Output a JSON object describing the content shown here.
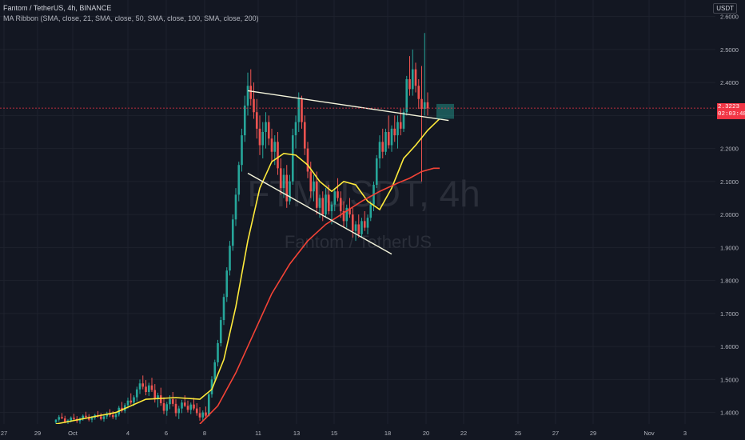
{
  "header": {
    "title": "Fantom / TetherUS, 4h, BINANCE",
    "indicator": "MA Ribbon (SMA, close, 21, SMA, close, 50, SMA, close, 100, SMA, close, 200)"
  },
  "currency": "USDT",
  "current_price": {
    "value": 2.3223,
    "label": "2.3223",
    "countdown": "02:03:48",
    "color": "#f23645"
  },
  "watermark": {
    "symbol": "FTMUSDT, 4h",
    "name": "Fantom / TetherUS"
  },
  "colors": {
    "background": "#131722",
    "grid": "#1e222d",
    "up": "#26a69a",
    "down": "#ef5350",
    "ma_fast": "#ffeb3b",
    "ma_slow": "#f44336",
    "trendline": "#f5f5dc"
  },
  "chart_data": {
    "type": "candlestick",
    "title": "Fantom / TetherUS, 4h, BINANCE",
    "ylim": [
      1.365,
      2.65
    ],
    "yaxis_ticks": [
      "2.6000",
      "2.5000",
      "2.4000",
      "2.3000",
      "2.2000",
      "2.1000",
      "2.0000",
      "1.9000",
      "1.8000",
      "1.7000",
      "1.6000",
      "1.5000",
      "1.4000"
    ],
    "xaxis_ticks": [
      "27",
      "29",
      "Oct",
      "4",
      "6",
      "8",
      "11",
      "13",
      "15",
      "18",
      "20",
      "22",
      "25",
      "27",
      "29",
      "Nov",
      "3"
    ],
    "candles": [
      [
        1.37,
        1.38,
        1.36,
        1.378
      ],
      [
        1.378,
        1.392,
        1.372,
        1.386
      ],
      [
        1.386,
        1.398,
        1.38,
        1.382
      ],
      [
        1.382,
        1.39,
        1.368,
        1.372
      ],
      [
        1.372,
        1.38,
        1.362,
        1.376
      ],
      [
        1.376,
        1.388,
        1.37,
        1.384
      ],
      [
        1.384,
        1.396,
        1.376,
        1.38
      ],
      [
        1.38,
        1.389,
        1.368,
        1.374
      ],
      [
        1.374,
        1.385,
        1.366,
        1.381
      ],
      [
        1.381,
        1.394,
        1.375,
        1.39
      ],
      [
        1.39,
        1.402,
        1.382,
        1.386
      ],
      [
        1.386,
        1.395,
        1.373,
        1.378
      ],
      [
        1.378,
        1.389,
        1.37,
        1.384
      ],
      [
        1.384,
        1.396,
        1.378,
        1.392
      ],
      [
        1.392,
        1.404,
        1.384,
        1.388
      ],
      [
        1.388,
        1.398,
        1.376,
        1.38
      ],
      [
        1.38,
        1.392,
        1.372,
        1.388
      ],
      [
        1.388,
        1.402,
        1.38,
        1.396
      ],
      [
        1.396,
        1.41,
        1.386,
        1.392
      ],
      [
        1.392,
        1.404,
        1.38,
        1.386
      ],
      [
        1.386,
        1.398,
        1.378,
        1.394
      ],
      [
        1.394,
        1.42,
        1.388,
        1.414
      ],
      [
        1.414,
        1.432,
        1.4,
        1.405
      ],
      [
        1.405,
        1.428,
        1.398,
        1.422
      ],
      [
        1.422,
        1.445,
        1.412,
        1.436
      ],
      [
        1.436,
        1.458,
        1.424,
        1.43
      ],
      [
        1.43,
        1.452,
        1.42,
        1.446
      ],
      [
        1.446,
        1.478,
        1.434,
        1.47
      ],
      [
        1.47,
        1.5,
        1.456,
        1.488
      ],
      [
        1.488,
        1.512,
        1.47,
        1.478
      ],
      [
        1.478,
        1.498,
        1.452,
        1.462
      ],
      [
        1.462,
        1.49,
        1.45,
        1.482
      ],
      [
        1.482,
        1.505,
        1.462,
        1.468
      ],
      [
        1.468,
        1.486,
        1.43,
        1.44
      ],
      [
        1.44,
        1.46,
        1.415,
        1.452
      ],
      [
        1.452,
        1.475,
        1.42,
        1.428
      ],
      [
        1.428,
        1.446,
        1.395,
        1.405
      ],
      [
        1.405,
        1.432,
        1.39,
        1.425
      ],
      [
        1.425,
        1.452,
        1.41,
        1.44
      ],
      [
        1.44,
        1.462,
        1.418,
        1.426
      ],
      [
        1.426,
        1.44,
        1.388,
        1.398
      ],
      [
        1.398,
        1.42,
        1.38,
        1.412
      ],
      [
        1.412,
        1.438,
        1.398,
        1.43
      ],
      [
        1.43,
        1.452,
        1.416,
        1.42
      ],
      [
        1.42,
        1.436,
        1.4,
        1.408
      ],
      [
        1.408,
        1.43,
        1.395,
        1.424
      ],
      [
        1.424,
        1.444,
        1.406,
        1.412
      ],
      [
        1.412,
        1.428,
        1.39,
        1.398
      ],
      [
        1.398,
        1.416,
        1.375,
        1.385
      ],
      [
        1.385,
        1.406,
        1.372,
        1.4
      ],
      [
        1.4,
        1.418,
        1.38,
        1.39
      ],
      [
        1.39,
        1.46,
        1.388,
        1.455
      ],
      [
        1.455,
        1.51,
        1.445,
        1.5
      ],
      [
        1.5,
        1.56,
        1.49,
        1.552
      ],
      [
        1.552,
        1.62,
        1.54,
        1.61
      ],
      [
        1.61,
        1.69,
        1.6,
        1.68
      ],
      [
        1.68,
        1.76,
        1.665,
        1.75
      ],
      [
        1.75,
        1.84,
        1.735,
        1.83
      ],
      [
        1.83,
        1.92,
        1.815,
        1.905
      ],
      [
        1.905,
        2.0,
        1.89,
        1.985
      ],
      [
        1.985,
        2.08,
        1.965,
        2.06
      ],
      [
        2.06,
        2.16,
        2.04,
        2.15
      ],
      [
        2.15,
        2.26,
        2.13,
        2.24
      ],
      [
        2.24,
        2.36,
        2.22,
        2.33
      ],
      [
        2.33,
        2.43,
        2.3,
        2.39
      ],
      [
        2.39,
        2.44,
        2.33,
        2.35
      ],
      [
        2.35,
        2.4,
        2.29,
        2.31
      ],
      [
        2.31,
        2.35,
        2.23,
        2.26
      ],
      [
        2.26,
        2.3,
        2.18,
        2.21
      ],
      [
        2.21,
        2.28,
        2.17,
        2.25
      ],
      [
        2.25,
        2.31,
        2.2,
        2.28
      ],
      [
        2.28,
        2.3,
        2.21,
        2.23
      ],
      [
        2.23,
        2.26,
        2.16,
        2.19
      ],
      [
        2.19,
        2.24,
        2.15,
        2.22
      ],
      [
        2.22,
        2.25,
        2.12,
        2.14
      ],
      [
        2.14,
        2.17,
        2.06,
        2.08
      ],
      [
        2.08,
        2.14,
        2.05,
        2.12
      ],
      [
        2.12,
        2.15,
        2.02,
        2.04
      ],
      [
        2.04,
        2.12,
        2.03,
        2.1
      ],
      [
        2.1,
        2.26,
        2.09,
        2.24
      ],
      [
        2.24,
        2.3,
        2.2,
        2.28
      ],
      [
        2.28,
        2.37,
        2.25,
        2.35
      ],
      [
        2.35,
        2.36,
        2.26,
        2.28
      ],
      [
        2.28,
        2.3,
        2.18,
        2.2
      ],
      [
        2.2,
        2.22,
        2.11,
        2.13
      ],
      [
        2.13,
        2.16,
        2.05,
        2.07
      ],
      [
        2.07,
        2.12,
        2.04,
        2.1
      ],
      [
        2.1,
        2.13,
        2.0,
        2.02
      ],
      [
        2.02,
        2.06,
        1.99,
        2.05
      ],
      [
        2.05,
        2.07,
        1.98,
        2.0
      ],
      [
        2.0,
        2.08,
        1.99,
        2.06
      ],
      [
        2.06,
        2.09,
        2.0,
        2.01
      ],
      [
        2.01,
        2.04,
        1.97,
        2.03
      ],
      [
        2.03,
        2.08,
        2.01,
        2.07
      ],
      [
        2.07,
        2.11,
        2.04,
        2.05
      ],
      [
        2.05,
        2.07,
        1.99,
        2.01
      ],
      [
        2.01,
        2.04,
        1.96,
        1.98
      ],
      [
        1.98,
        2.03,
        1.96,
        2.02
      ],
      [
        2.02,
        2.05,
        1.99,
        2.0
      ],
      [
        2.0,
        2.02,
        1.93,
        1.95
      ],
      [
        1.95,
        1.98,
        1.92,
        1.97
      ],
      [
        1.97,
        2.0,
        1.93,
        1.94
      ],
      [
        1.94,
        1.99,
        1.93,
        1.98
      ],
      [
        1.98,
        2.01,
        1.95,
        1.96
      ],
      [
        1.96,
        2.0,
        1.94,
        1.99
      ],
      [
        1.99,
        2.04,
        1.98,
        2.03
      ],
      [
        2.03,
        2.1,
        2.01,
        2.09
      ],
      [
        2.09,
        2.18,
        2.08,
        2.17
      ],
      [
        2.17,
        2.24,
        2.14,
        2.22
      ],
      [
        2.22,
        2.26,
        2.17,
        2.19
      ],
      [
        2.19,
        2.26,
        2.18,
        2.25
      ],
      [
        2.25,
        2.3,
        2.2,
        2.21
      ],
      [
        2.21,
        2.27,
        2.19,
        2.26
      ],
      [
        2.26,
        2.3,
        2.22,
        2.24
      ],
      [
        2.24,
        2.3,
        2.2,
        2.28
      ],
      [
        2.28,
        2.32,
        2.24,
        2.26
      ],
      [
        2.26,
        2.32,
        2.25,
        2.31
      ],
      [
        2.31,
        2.42,
        2.3,
        2.41
      ],
      [
        2.41,
        2.48,
        2.36,
        2.38
      ],
      [
        2.38,
        2.5,
        2.36,
        2.44
      ],
      [
        2.44,
        2.46,
        2.37,
        2.39
      ],
      [
        2.39,
        2.41,
        2.32,
        2.35
      ],
      [
        2.35,
        2.45,
        2.1,
        2.32
      ],
      [
        2.32,
        2.55,
        2.3,
        2.34
      ],
      [
        2.34,
        2.37,
        2.3,
        2.322
      ]
    ],
    "ma_fast": {
      "name": "MA 21",
      "values": [
        [
          0,
          1.365
        ],
        [
          20,
          1.4
        ],
        [
          30,
          1.44
        ],
        [
          40,
          1.445
        ],
        [
          48,
          1.44
        ],
        [
          52,
          1.47
        ],
        [
          56,
          1.56
        ],
        [
          60,
          1.72
        ],
        [
          64,
          1.92
        ],
        [
          68,
          2.08
        ],
        [
          72,
          2.16
        ],
        [
          76,
          2.185
        ],
        [
          80,
          2.18
        ],
        [
          84,
          2.15
        ],
        [
          88,
          2.1
        ],
        [
          92,
          2.07
        ],
        [
          96,
          2.1
        ],
        [
          100,
          2.09
        ],
        [
          104,
          2.04
        ],
        [
          108,
          2.015
        ],
        [
          112,
          2.08
        ],
        [
          116,
          2.17
        ],
        [
          120,
          2.21
        ],
        [
          124,
          2.255
        ],
        [
          128,
          2.29
        ]
      ]
    },
    "ma_slow": {
      "name": "MA 50",
      "values": [
        [
          48,
          1.365
        ],
        [
          54,
          1.42
        ],
        [
          60,
          1.52
        ],
        [
          66,
          1.64
        ],
        [
          72,
          1.76
        ],
        [
          78,
          1.85
        ],
        [
          84,
          1.92
        ],
        [
          90,
          1.97
        ],
        [
          96,
          2.005
        ],
        [
          102,
          2.04
        ],
        [
          108,
          2.07
        ],
        [
          114,
          2.095
        ],
        [
          118,
          2.11
        ],
        [
          122,
          2.13
        ],
        [
          126,
          2.14
        ],
        [
          128,
          2.14
        ]
      ]
    },
    "trendlines": [
      {
        "from": [
          64,
          2.375
        ],
        "to": [
          131,
          2.285
        ]
      },
      {
        "from": [
          64,
          2.125
        ],
        "to": [
          112,
          1.88
        ]
      }
    ]
  }
}
